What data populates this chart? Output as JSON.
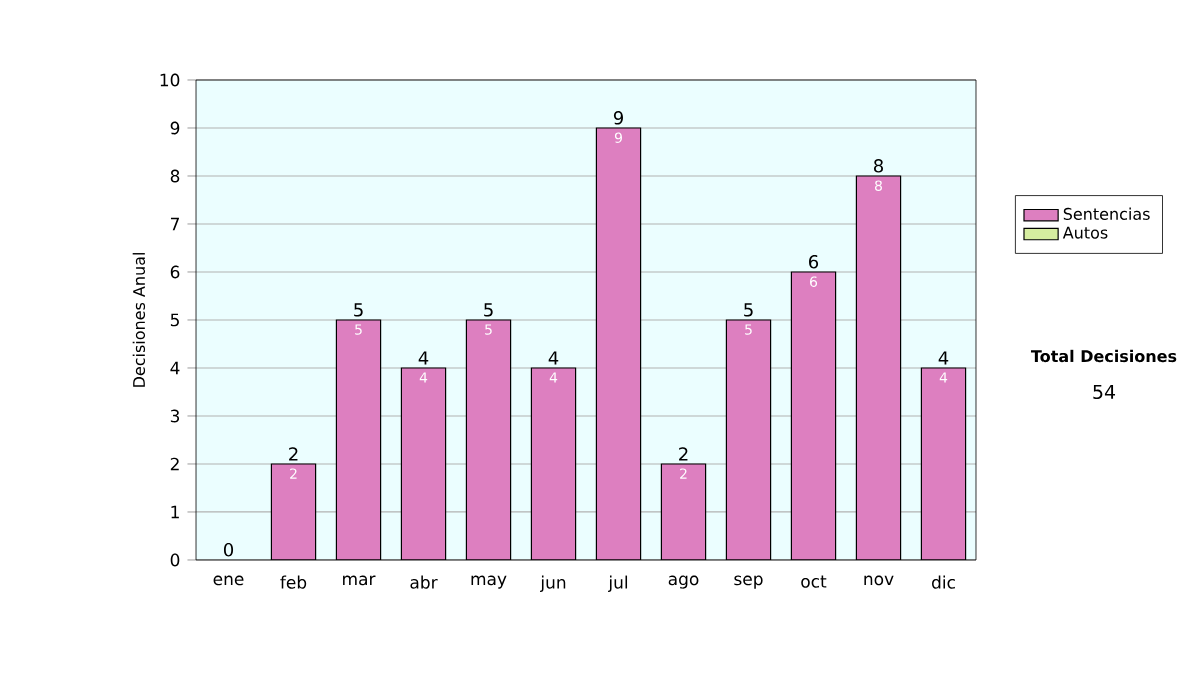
{
  "chart_data": {
    "type": "bar",
    "stacked": true,
    "ylabel": "Decisiones Anual",
    "categories": [
      "ene",
      "feb",
      "mar",
      "abr",
      "may",
      "jun",
      "jul",
      "ago",
      "sep",
      "oct",
      "nov",
      "dic"
    ],
    "series": [
      {
        "name": "Sentencias",
        "color": "#dd7fc0",
        "values": [
          0,
          2,
          5,
          4,
          5,
          4,
          9,
          2,
          5,
          6,
          8,
          4
        ],
        "value_labels": [
          null,
          "2",
          "5",
          "4",
          "5",
          "4",
          "9",
          "2",
          "5",
          "6",
          "8",
          "4"
        ]
      },
      {
        "name": "Autos",
        "color": "#d6eda0",
        "values": [
          0,
          0,
          0,
          0,
          0,
          0,
          0,
          0,
          0,
          0,
          0,
          0
        ]
      }
    ],
    "totals": [
      "0",
      "2",
      "5",
      "4",
      "5",
      "4",
      "9",
      "2",
      "5",
      "6",
      "8",
      "4"
    ],
    "ylim": [
      0,
      10
    ],
    "yticks": [
      0,
      1,
      2,
      3,
      4,
      5,
      6,
      7,
      8,
      9,
      10
    ],
    "grid": "y",
    "legend": "right",
    "annotations": [
      "Total Decisiones",
      "54"
    ]
  }
}
